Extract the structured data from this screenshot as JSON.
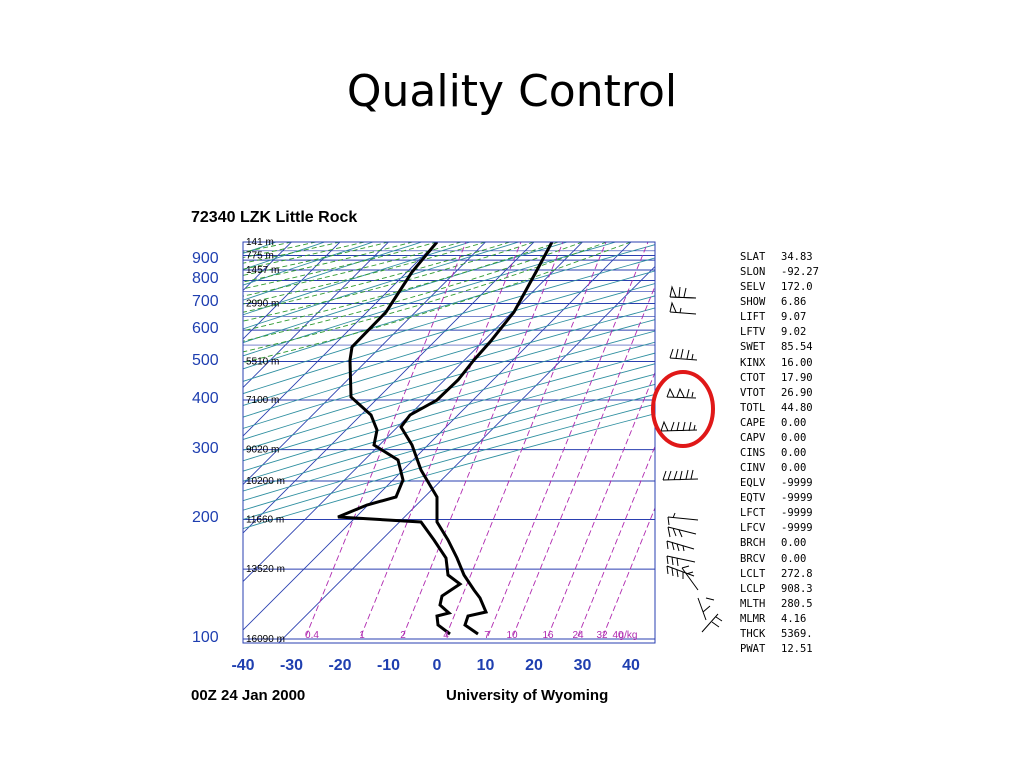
{
  "slide": {
    "title": "Quality Control"
  },
  "sounding": {
    "station": "72340 LZK Little Rock",
    "time": "00Z 24 Jan 2000",
    "source": "University of Wyoming",
    "pressure_labels": [
      {
        "p": 100,
        "text": "100"
      },
      {
        "p": 200,
        "text": "200"
      },
      {
        "p": 300,
        "text": "300"
      },
      {
        "p": 400,
        "text": "400"
      },
      {
        "p": 500,
        "text": "500"
      },
      {
        "p": 600,
        "text": "600"
      },
      {
        "p": 700,
        "text": "700"
      },
      {
        "p": 800,
        "text": "800"
      },
      {
        "p": 900,
        "text": "900"
      }
    ],
    "temp_labels": [
      {
        "t": -40,
        "text": "-40"
      },
      {
        "t": -30,
        "text": "-30"
      },
      {
        "t": -20,
        "text": "-20"
      },
      {
        "t": -10,
        "text": "-10"
      },
      {
        "t": 0,
        "text": "0"
      },
      {
        "t": 10,
        "text": "10"
      },
      {
        "t": 20,
        "text": "20"
      },
      {
        "t": 30,
        "text": "30"
      },
      {
        "t": 40,
        "text": "40"
      }
    ],
    "height_labels": [
      {
        "p": 100,
        "text": "16090 m"
      },
      {
        "p": 150,
        "text": "13520 m"
      },
      {
        "p": 200,
        "text": "11660 m"
      },
      {
        "p": 250,
        "text": "10200 m"
      },
      {
        "p": 300,
        "text": "9020 m"
      },
      {
        "p": 400,
        "text": "7100 m"
      },
      {
        "p": 500,
        "text": "5510 m"
      },
      {
        "p": 700,
        "text": "2990 m"
      },
      {
        "p": 850,
        "text": "1457 m"
      },
      {
        "p": 925,
        "text": "775 m"
      },
      {
        "p": 1000,
        "text": "141 m"
      }
    ],
    "mixing_ratio_labels": [
      "0.4",
      "1",
      "2",
      "4",
      "7",
      "10",
      "16",
      "24",
      "32",
      "40",
      "g/kg"
    ],
    "indices": [
      {
        "key": "SLAT",
        "value": "34.83"
      },
      {
        "key": "SLON",
        "value": "-92.27"
      },
      {
        "key": "SELV",
        "value": "172.0"
      },
      {
        "key": "SHOW",
        "value": "6.86"
      },
      {
        "key": "LIFT",
        "value": "9.07"
      },
      {
        "key": "LFTV",
        "value": "9.02"
      },
      {
        "key": "SWET",
        "value": "85.54"
      },
      {
        "key": "KINX",
        "value": "16.00"
      },
      {
        "key": "CTOT",
        "value": "17.90"
      },
      {
        "key": "VTOT",
        "value": "26.90"
      },
      {
        "key": "TOTL",
        "value": "44.80"
      },
      {
        "key": "CAPE",
        "value": "0.00"
      },
      {
        "key": "CAPV",
        "value": "0.00"
      },
      {
        "key": "CINS",
        "value": "0.00"
      },
      {
        "key": "CINV",
        "value": "0.00"
      },
      {
        "key": "EQLV",
        "value": "-9999"
      },
      {
        "key": "EQTV",
        "value": "-9999"
      },
      {
        "key": "LFCT",
        "value": "-9999"
      },
      {
        "key": "LFCV",
        "value": "-9999"
      },
      {
        "key": "BRCH",
        "value": "0.00"
      },
      {
        "key": "BRCV",
        "value": "0.00"
      },
      {
        "key": "LCLT",
        "value": "272.8"
      },
      {
        "key": "LCLP",
        "value": "908.3"
      },
      {
        "key": "MLTH",
        "value": "280.5"
      },
      {
        "key": "MLMR",
        "value": "4.16"
      },
      {
        "key": "THCK",
        "value": "5369."
      },
      {
        "key": "PWAT",
        "value": "12.51"
      }
    ],
    "colors": {
      "isobar": "#2a3fb0",
      "isotherm": "#2a3fb0",
      "dry_adiabat": "#2f8fa0",
      "moist_adiabat": "#2f9a2f",
      "mixing_ratio": "#b02ab0",
      "profile": "#000000",
      "highlight_circle": "#e01818",
      "axis_labels": "#1f3fb0"
    }
  }
}
